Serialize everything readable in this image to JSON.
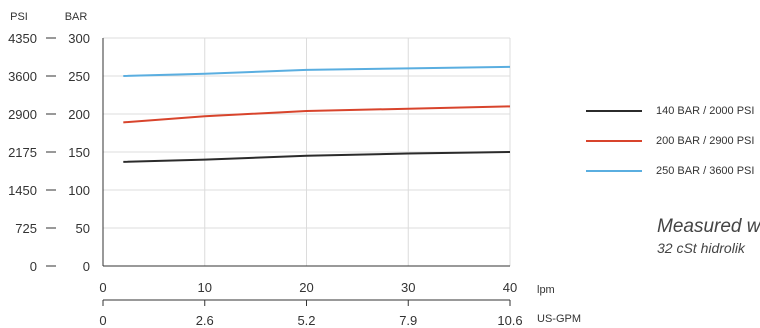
{
  "chart_data": {
    "type": "line",
    "x_lpm": [
      2,
      10,
      20,
      30,
      40
    ],
    "xlim": [
      0,
      40
    ],
    "x_ticks_lpm": [
      "0",
      "10",
      "20",
      "30",
      "40"
    ],
    "x_unit_lpm": "lpm",
    "x_ticks_usgpm": [
      "0",
      "2.6",
      "5.2",
      "7.9",
      "10.6"
    ],
    "x_unit_usgpm": "US-GPM",
    "ylim_bar": [
      0,
      300
    ],
    "y_ticks_bar": [
      "0",
      "50",
      "100",
      "150",
      "200",
      "250",
      "300"
    ],
    "y_unit_bar": "BAR",
    "y_ticks_psi": [
      "0",
      "725",
      "1450",
      "2175",
      "2900",
      "3600",
      "4350"
    ],
    "y_unit_psi": "PSI",
    "grid": true,
    "legend_position": "right",
    "series": [
      {
        "name": "140 BAR / 2000 PSI",
        "color": "#2b2b2b",
        "values": [
          137,
          140,
          145,
          148,
          150
        ]
      },
      {
        "name": "200 BAR / 2900 PSI",
        "color": "#d8442c",
        "values": [
          189,
          197,
          204,
          207,
          210
        ]
      },
      {
        "name": "250 BAR / 3600 PSI",
        "color": "#5aaee0",
        "values": [
          250,
          253,
          258,
          260,
          262
        ]
      }
    ]
  },
  "note": {
    "line1": "Measured w",
    "line2": "32 cSt hidrolik"
  }
}
